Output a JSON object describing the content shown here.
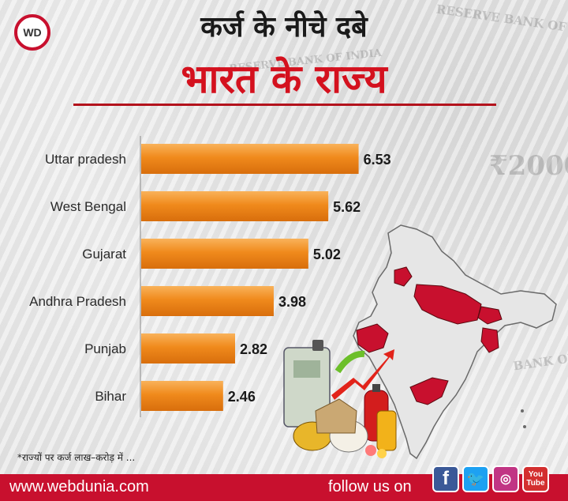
{
  "brand": {
    "logo_text": "WD",
    "website": "www.webdunia.com",
    "follow_text": "follow us on",
    "social": [
      "facebook-icon",
      "twitter-icon",
      "instagram-icon",
      "youtube-icon"
    ],
    "social_glyphs": {
      "facebook": "f",
      "twitter": "🐦",
      "instagram": "◎",
      "youtube": "You Tube"
    },
    "colors": {
      "accent": "#c8102e",
      "bar": "#f08a1c",
      "map_highlight": "#c8102e"
    }
  },
  "header": {
    "title_line1": "कर्ज के नीचे दबे",
    "title_line2": "भारत के राज्य"
  },
  "footnote": "*राज्यों पर कर्ज लाख–करोड़ में ...",
  "chart_data": {
    "type": "bar",
    "orientation": "horizontal",
    "categories": [
      "Uttar pradesh",
      "West Bengal",
      "Gujarat",
      "Andhra Pradesh",
      "Punjab",
      "Bihar"
    ],
    "values": [
      6.53,
      5.62,
      5.02,
      3.98,
      2.82,
      2.46
    ],
    "value_labels": [
      "6.53",
      "5.62",
      "5.02",
      "3.98",
      "2.82",
      "2.46"
    ],
    "title": "",
    "xlabel": "",
    "ylabel": "",
    "xlim": [
      0,
      7.5
    ],
    "grid": false,
    "legend": "none"
  }
}
